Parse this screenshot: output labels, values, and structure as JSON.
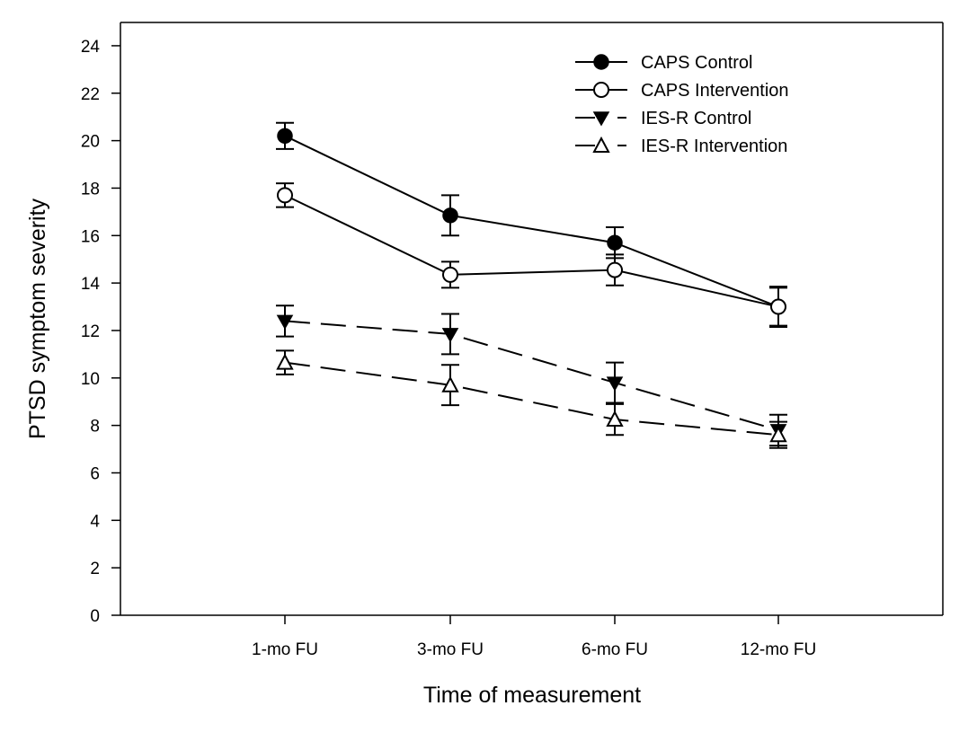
{
  "chart_data": {
    "type": "line",
    "title": "",
    "xlabel": "Time of measurement",
    "ylabel": "PTSD symptom severity",
    "categories": [
      "1-mo FU",
      "3-mo FU",
      "6-mo FU",
      "12-mo FU"
    ],
    "ylim": [
      0,
      25
    ],
    "yticks": [
      0,
      2,
      4,
      6,
      8,
      10,
      12,
      14,
      16,
      18,
      20,
      22,
      24
    ],
    "grid": false,
    "legend_position": "top-right",
    "error_bars": true,
    "series": [
      {
        "name": "CAPS Control",
        "marker": "filled-circle",
        "line_style": "solid",
        "values": [
          20.2,
          16.85,
          15.7,
          13.0
        ],
        "errors": [
          0.55,
          0.85,
          0.65,
          0.85
        ]
      },
      {
        "name": "CAPS Intervention",
        "marker": "open-circle",
        "line_style": "solid",
        "values": [
          17.7,
          14.35,
          14.55,
          13.0
        ],
        "errors": [
          0.5,
          0.55,
          0.65,
          0.8
        ]
      },
      {
        "name": "IES-R Control",
        "marker": "filled-triangle-down",
        "line_style": "dashed",
        "values": [
          12.4,
          11.85,
          9.8,
          7.8
        ],
        "errors": [
          0.65,
          0.85,
          0.85,
          0.65
        ]
      },
      {
        "name": "IES-R Intervention",
        "marker": "open-triangle-up",
        "line_style": "dashed",
        "values": [
          10.65,
          9.7,
          8.25,
          7.6
        ],
        "errors": [
          0.5,
          0.85,
          0.65,
          0.55
        ]
      }
    ]
  }
}
